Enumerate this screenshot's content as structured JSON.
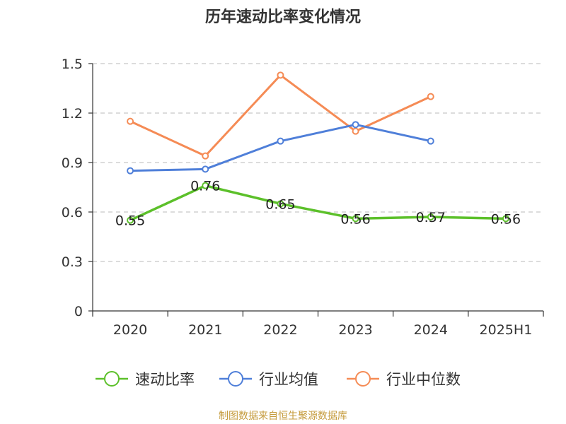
{
  "title": "历年速动比率变化情况",
  "source": "制图数据来自恒生聚源数据库",
  "chart_data": {
    "type": "line",
    "title": "历年速动比率变化情况",
    "categories": [
      "2020",
      "2021",
      "2022",
      "2023",
      "2024",
      "2025H1"
    ],
    "ylim": [
      0,
      1.5
    ],
    "yticks": [
      0,
      0.3,
      0.6,
      0.9,
      1.2,
      1.5
    ],
    "ytick_labels": [
      "0",
      "0.3",
      "0.6",
      "0.9",
      "1.2",
      "1.5"
    ],
    "grid": true,
    "legend_position": "bottom",
    "series": [
      {
        "name": "速动比率",
        "color": "#5cc02a",
        "values": [
          0.55,
          0.76,
          0.65,
          0.56,
          0.57,
          0.56
        ],
        "labels": [
          "0.55",
          "0.76",
          "0.65",
          "0.56",
          "0.57",
          "0.56"
        ]
      },
      {
        "name": "行业均值",
        "color": "#4f7fd9",
        "values": [
          0.85,
          0.86,
          1.03,
          1.13,
          1.03,
          null
        ]
      },
      {
        "name": "行业中位数",
        "color": "#f58b55",
        "values": [
          1.15,
          0.94,
          1.43,
          1.09,
          1.3,
          null
        ]
      }
    ]
  }
}
